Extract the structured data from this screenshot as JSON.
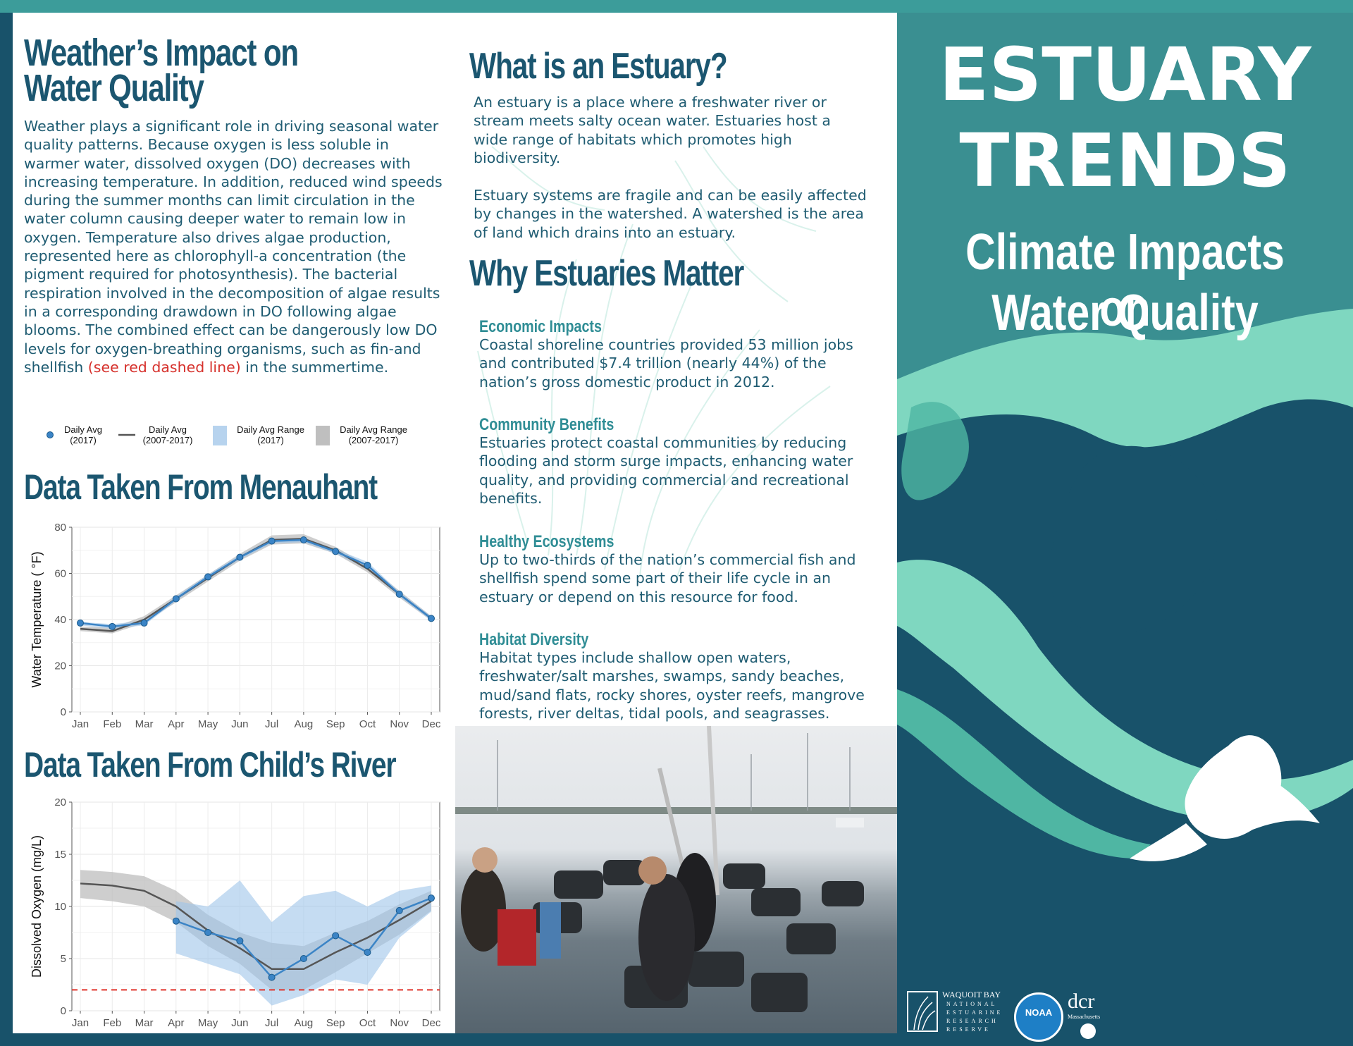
{
  "weather": {
    "heading_line1": "Weather’s Impact on",
    "heading_line2": "Water Quality",
    "body": "Weather plays a significant role in driving seasonal water quality patterns. Because oxygen is less soluble in warmer water, dissolved oxygen (DO) decreases with increasing temperature. In addition, reduced wind speeds during the summer months can limit circulation in the water column causing deeper water to remain low in oxygen. Temperature also drives algae production, represented here as chlorophyll-a concentration (the pigment required for photosynthesis). The bacterial respiration involved in the decomposition of algae results in a corresponding drawdown in DO following algae blooms. The combined effect can be dangerously low DO levels for oxygen-breathing organisms, such as fin-and shellfish",
    "red_text": "(see red dashed line)",
    "body_end": " in the summertime."
  },
  "legend": {
    "daily_avg_2017": "Daily Avg\n(2017)",
    "daily_avg_2007": "Daily Avg\n(2007-2017)",
    "range_2017": "Daily Avg Range\n(2017)",
    "range_2007": "Daily Avg Range\n(2007-2017)"
  },
  "sections": {
    "menauhant_heading": "Data Taken From Menauhant",
    "childs_heading": "Data Taken From Child’s River"
  },
  "estuary": {
    "heading": "What is an Estuary?",
    "p1": "An estuary is a place where a freshwater river or stream meets salty ocean water.   Estuaries host a wide range of habitats which promotes high biodiversity.",
    "p2": "Estuary systems are fragile and can be easily affected by changes in the watershed. A watershed is the area of land which drains into an estuary."
  },
  "matter": {
    "heading": "Why Estuaries Matter",
    "items": [
      {
        "title": "Economic Impacts",
        "text": "Coastal shoreline countries provided 53 million jobs and contributed $7.4 trillion (nearly 44%) of the nation’s gross domestic product in 2012."
      },
      {
        "title": "Community Benefits",
        "text": "Estuaries protect coastal communities by reducing flooding and storm surge impacts, enhancing water quality, and providing commercial and recreational benefits."
      },
      {
        "title": "Healthy Ecosystems",
        "text": "Up to two-thirds of the nation’s commercial fish and shellfish spend some part of their life cycle in an estuary or depend on this resource for food."
      },
      {
        "title": "Habitat Diversity",
        "text": "Habitat types include shallow open waters, freshwater/salt marshes, swamps, sandy beaches, mud/sand flats, rocky shores, oyster reefs, mangrove forests, river deltas, tidal pools, and seagrasses."
      }
    ]
  },
  "cover": {
    "title_line1": "ESTUARY",
    "title_line2": "TRENDS",
    "subtitle_line1": "Climate Impacts on",
    "subtitle_line2": "Water Quality",
    "logos": {
      "waquoit_name": "WAQUOIT BAY",
      "waquoit_sub": [
        "NATIONAL",
        "ESTUARINE",
        "RESEARCH",
        "RESERVE"
      ],
      "noaa": "NOAA",
      "dcr": "dcr",
      "dcr_sub": "Massachusetts"
    }
  },
  "colors": {
    "heading": "#1b5670",
    "accent": "#2f8d95",
    "red": "#d6312c",
    "blue_series": "#3b84c6",
    "gray_series": "#555555"
  },
  "chart_data": [
    {
      "type": "line",
      "ylabel": "Water Temperature ( °F)",
      "xlabel": "",
      "categories": [
        "Jan",
        "Feb",
        "Mar",
        "Apr",
        "May",
        "Jun",
        "Jul",
        "Aug",
        "Sep",
        "Oct",
        "Nov",
        "Dec"
      ],
      "ylim": [
        0,
        80
      ],
      "yticks": [
        0,
        20,
        40,
        60,
        80
      ],
      "grid": true,
      "series": [
        {
          "name": "Daily Avg (2017)",
          "values": [
            38.5,
            37,
            38.5,
            49,
            58.5,
            67,
            74,
            74.5,
            69.5,
            63.5,
            51,
            40.5
          ]
        },
        {
          "name": "Daily Avg (2007-2017)",
          "values": [
            36,
            35,
            40,
            49,
            58,
            67,
            74.5,
            75,
            70,
            62,
            51,
            40.5
          ]
        },
        {
          "name": "Daily Avg Range (2007-2017)",
          "lower": [
            35,
            34,
            38.5,
            47.5,
            56.5,
            65.5,
            72.5,
            73,
            68.5,
            60.5,
            49.5,
            39.5
          ],
          "upper": [
            37,
            36.5,
            41.5,
            50.5,
            59.5,
            68.5,
            76.5,
            77,
            71.5,
            63.5,
            52.5,
            41.5
          ]
        },
        {
          "name": "Daily Avg Range (2017)",
          "lower": [
            37.5,
            36,
            37.5,
            48,
            57.5,
            66,
            73,
            73.5,
            68.5,
            62,
            50,
            39.5
          ],
          "upper": [
            39,
            38,
            39.5,
            50,
            59.5,
            68,
            75,
            75.5,
            70.5,
            65,
            52,
            41.5
          ]
        }
      ]
    },
    {
      "type": "line",
      "ylabel": "Dissolved Oxygen (mg/L)",
      "xlabel": "",
      "categories": [
        "Jan",
        "Feb",
        "Mar",
        "Apr",
        "May",
        "Jun",
        "Jul",
        "Aug",
        "Sep",
        "Oct",
        "Nov",
        "Dec"
      ],
      "ylim": [
        0,
        20
      ],
      "yticks": [
        0,
        5,
        10,
        15,
        20
      ],
      "grid": true,
      "threshold": 2,
      "series": [
        {
          "name": "Daily Avg (2017)",
          "values": [
            null,
            null,
            null,
            8.6,
            7.5,
            6.7,
            3.2,
            5,
            7.2,
            5.6,
            9.6,
            10.8
          ]
        },
        {
          "name": "Daily Avg (2007-2017)",
          "values": [
            12.2,
            12,
            11.5,
            10,
            7.7,
            6,
            4,
            4,
            5.6,
            7,
            8.7,
            10.5
          ]
        },
        {
          "name": "Daily Avg Range (2007-2017)",
          "lower": [
            10.8,
            10.5,
            10,
            8.5,
            6.2,
            4.5,
            2,
            2,
            3.7,
            5.5,
            7.3,
            9.6
          ],
          "upper": [
            13.5,
            13.3,
            12.9,
            11.5,
            9.2,
            7.5,
            6.5,
            6.2,
            7.5,
            8.6,
            10.2,
            11.5
          ]
        },
        {
          "name": "Daily Avg Range (2017)",
          "lower": [
            null,
            null,
            null,
            5.5,
            4.5,
            3.5,
            0.5,
            1.5,
            3,
            2.5,
            7,
            9.5
          ],
          "upper": [
            null,
            null,
            null,
            10.5,
            10,
            12.5,
            8.5,
            11,
            11.5,
            10,
            11.5,
            12
          ]
        }
      ]
    }
  ]
}
